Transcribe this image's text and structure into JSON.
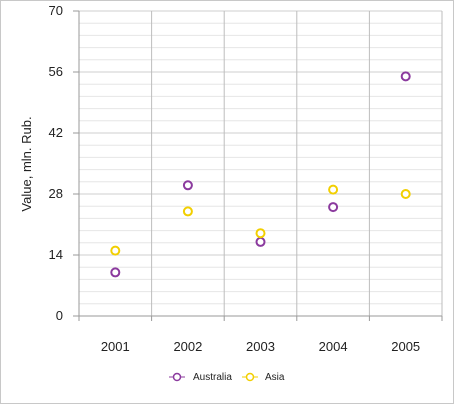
{
  "chart_data": {
    "type": "scatter",
    "categories": [
      "2001",
      "2002",
      "2003",
      "2004",
      "2005"
    ],
    "series": [
      {
        "name": "Australia",
        "color": "#8b3a9e",
        "values": [
          10,
          30,
          17,
          25,
          55
        ]
      },
      {
        "name": "Asia",
        "color": "#f2cf00",
        "values": [
          15,
          24,
          19,
          29,
          28
        ]
      }
    ],
    "ylabel": "Value, mln. Rub.",
    "xlabel": "",
    "ylim": [
      0,
      70
    ],
    "yticks": [
      0,
      14,
      28,
      42,
      56,
      70
    ],
    "grid": true,
    "legend_position": "bottom"
  }
}
